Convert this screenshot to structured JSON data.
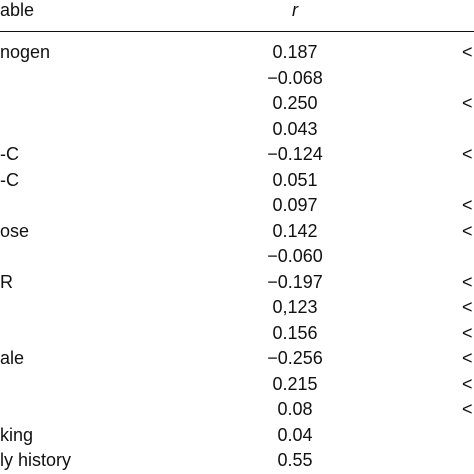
{
  "table": {
    "header": {
      "variable": "able",
      "r": "r"
    },
    "rows": [
      {
        "variable": "nogen",
        "r": "0.187",
        "p": "<"
      },
      {
        "variable": "",
        "r": "−0.068",
        "p": ""
      },
      {
        "variable": "",
        "r": "0.250",
        "p": "<"
      },
      {
        "variable": "",
        "r": "0.043",
        "p": ""
      },
      {
        "variable": "-C",
        "r": "−0.124",
        "p": "<"
      },
      {
        "variable": "-C",
        "r": "0.051",
        "p": ""
      },
      {
        "variable": "",
        "r": "0.097",
        "p": "<"
      },
      {
        "variable": "ose",
        "r": "0.142",
        "p": "<"
      },
      {
        "variable": "",
        "r": "−0.060",
        "p": ""
      },
      {
        "variable": "R",
        "r": "−0.197",
        "p": "<"
      },
      {
        "variable": "",
        "r": "0,123",
        "p": "<"
      },
      {
        "variable": "",
        "r": "0.156",
        "p": "<"
      },
      {
        "variable": "ale",
        "r": "−0.256",
        "p": "<"
      },
      {
        "variable": "",
        "r": "0.215",
        "p": "<"
      },
      {
        "variable": "",
        "r": "0.08",
        "p": "<"
      },
      {
        "variable": "king",
        "r": "0.04",
        "p": ""
      },
      {
        "variable": "ly history",
        "r": "0.55",
        "p": ""
      }
    ]
  }
}
